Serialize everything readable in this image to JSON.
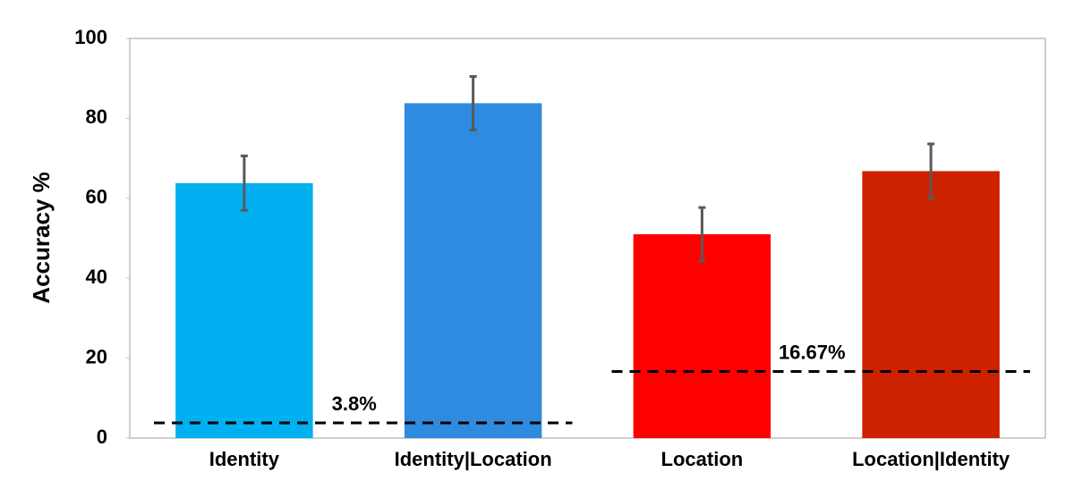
{
  "chart_data": {
    "type": "bar",
    "y_label": "Accuracy %",
    "categories": [
      "Identity",
      "Identity|Location",
      "Location",
      "Location|Identity"
    ],
    "values": [
      63.8,
      83.8,
      51,
      66.8
    ],
    "errors": [
      6.8,
      6.7,
      6.7,
      6.8
    ],
    "colors": [
      "#00b0f0",
      "#2e8be0",
      "#ff0000",
      "#cc2200"
    ],
    "ylim": [
      0,
      100
    ],
    "yticks": [
      0,
      20,
      40,
      60,
      80,
      100
    ],
    "reference_lines": [
      {
        "value": 3.8,
        "label": "3.8%"
      },
      {
        "value": 16.67,
        "label": "16.67%"
      }
    ]
  }
}
